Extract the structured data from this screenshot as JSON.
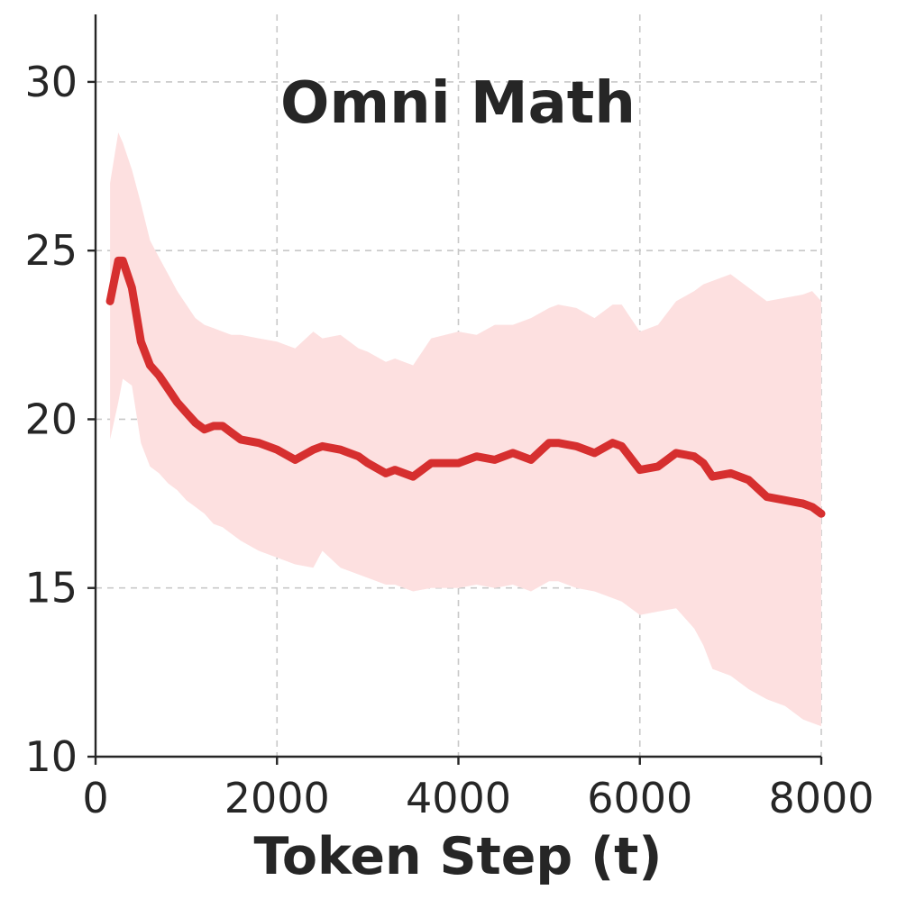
{
  "chart_data": {
    "type": "line",
    "title": "Omni Math",
    "xlabel": "Token Step (t)",
    "ylabel": "",
    "xlim": [
      0,
      8000
    ],
    "ylim": [
      10,
      32
    ],
    "xticks": [
      0,
      2000,
      4000,
      6000,
      8000
    ],
    "yticks": [
      10,
      15,
      20,
      25,
      30
    ],
    "grid": true,
    "colors": {
      "line": "#d62f2f",
      "band": "#fde0e0",
      "text": "#262626"
    },
    "series": [
      {
        "x": [
          160,
          250,
          300,
          400,
          500,
          600,
          700,
          800,
          900,
          1000,
          1100,
          1200,
          1300,
          1400,
          1500,
          1600,
          1800,
          2000,
          2200,
          2400,
          2500,
          2700,
          2900,
          3000,
          3200,
          3300,
          3500,
          3700,
          4000,
          4200,
          4400,
          4600,
          4800,
          5000,
          5100,
          5300,
          5500,
          5700,
          5800,
          6000,
          6200,
          6400,
          6600,
          6700,
          6800,
          7000,
          7200,
          7400,
          7600,
          7800,
          7900,
          8000
        ],
        "values": [
          23.5,
          24.7,
          24.7,
          23.9,
          22.3,
          21.6,
          21.3,
          20.9,
          20.5,
          20.2,
          19.9,
          19.7,
          19.8,
          19.8,
          19.6,
          19.4,
          19.3,
          19.1,
          18.8,
          19.1,
          19.2,
          19.1,
          18.9,
          18.7,
          18.4,
          18.5,
          18.3,
          18.7,
          18.7,
          18.9,
          18.8,
          19.0,
          18.8,
          19.3,
          19.3,
          19.2,
          19.0,
          19.3,
          19.2,
          18.5,
          18.6,
          19.0,
          18.9,
          18.7,
          18.3,
          18.4,
          18.2,
          17.7,
          17.6,
          17.5,
          17.4,
          17.2
        ],
        "lower": [
          19.4,
          20.5,
          21.2,
          21.0,
          19.3,
          18.6,
          18.4,
          18.1,
          17.9,
          17.6,
          17.4,
          17.2,
          16.9,
          16.8,
          16.6,
          16.4,
          16.1,
          15.9,
          15.7,
          15.6,
          16.1,
          15.6,
          15.4,
          15.3,
          15.1,
          15.1,
          14.9,
          15.0,
          15.0,
          15.1,
          15.0,
          15.1,
          14.9,
          15.2,
          15.2,
          15.0,
          14.9,
          14.7,
          14.6,
          14.2,
          14.3,
          14.4,
          13.8,
          13.3,
          12.6,
          12.4,
          12.0,
          11.7,
          11.5,
          11.1,
          11.0,
          10.9
        ],
        "upper": [
          27.0,
          28.5,
          28.2,
          27.4,
          26.4,
          25.3,
          24.8,
          24.3,
          23.8,
          23.4,
          23.0,
          22.8,
          22.7,
          22.6,
          22.5,
          22.5,
          22.4,
          22.3,
          22.1,
          22.6,
          22.4,
          22.5,
          22.1,
          22.0,
          21.7,
          21.8,
          21.6,
          22.4,
          22.6,
          22.5,
          22.8,
          22.8,
          23.0,
          23.3,
          23.4,
          23.3,
          23.0,
          23.4,
          23.4,
          22.6,
          22.8,
          23.5,
          23.8,
          24.0,
          24.1,
          24.3,
          23.9,
          23.5,
          23.6,
          23.7,
          23.8,
          23.5
        ]
      }
    ]
  }
}
